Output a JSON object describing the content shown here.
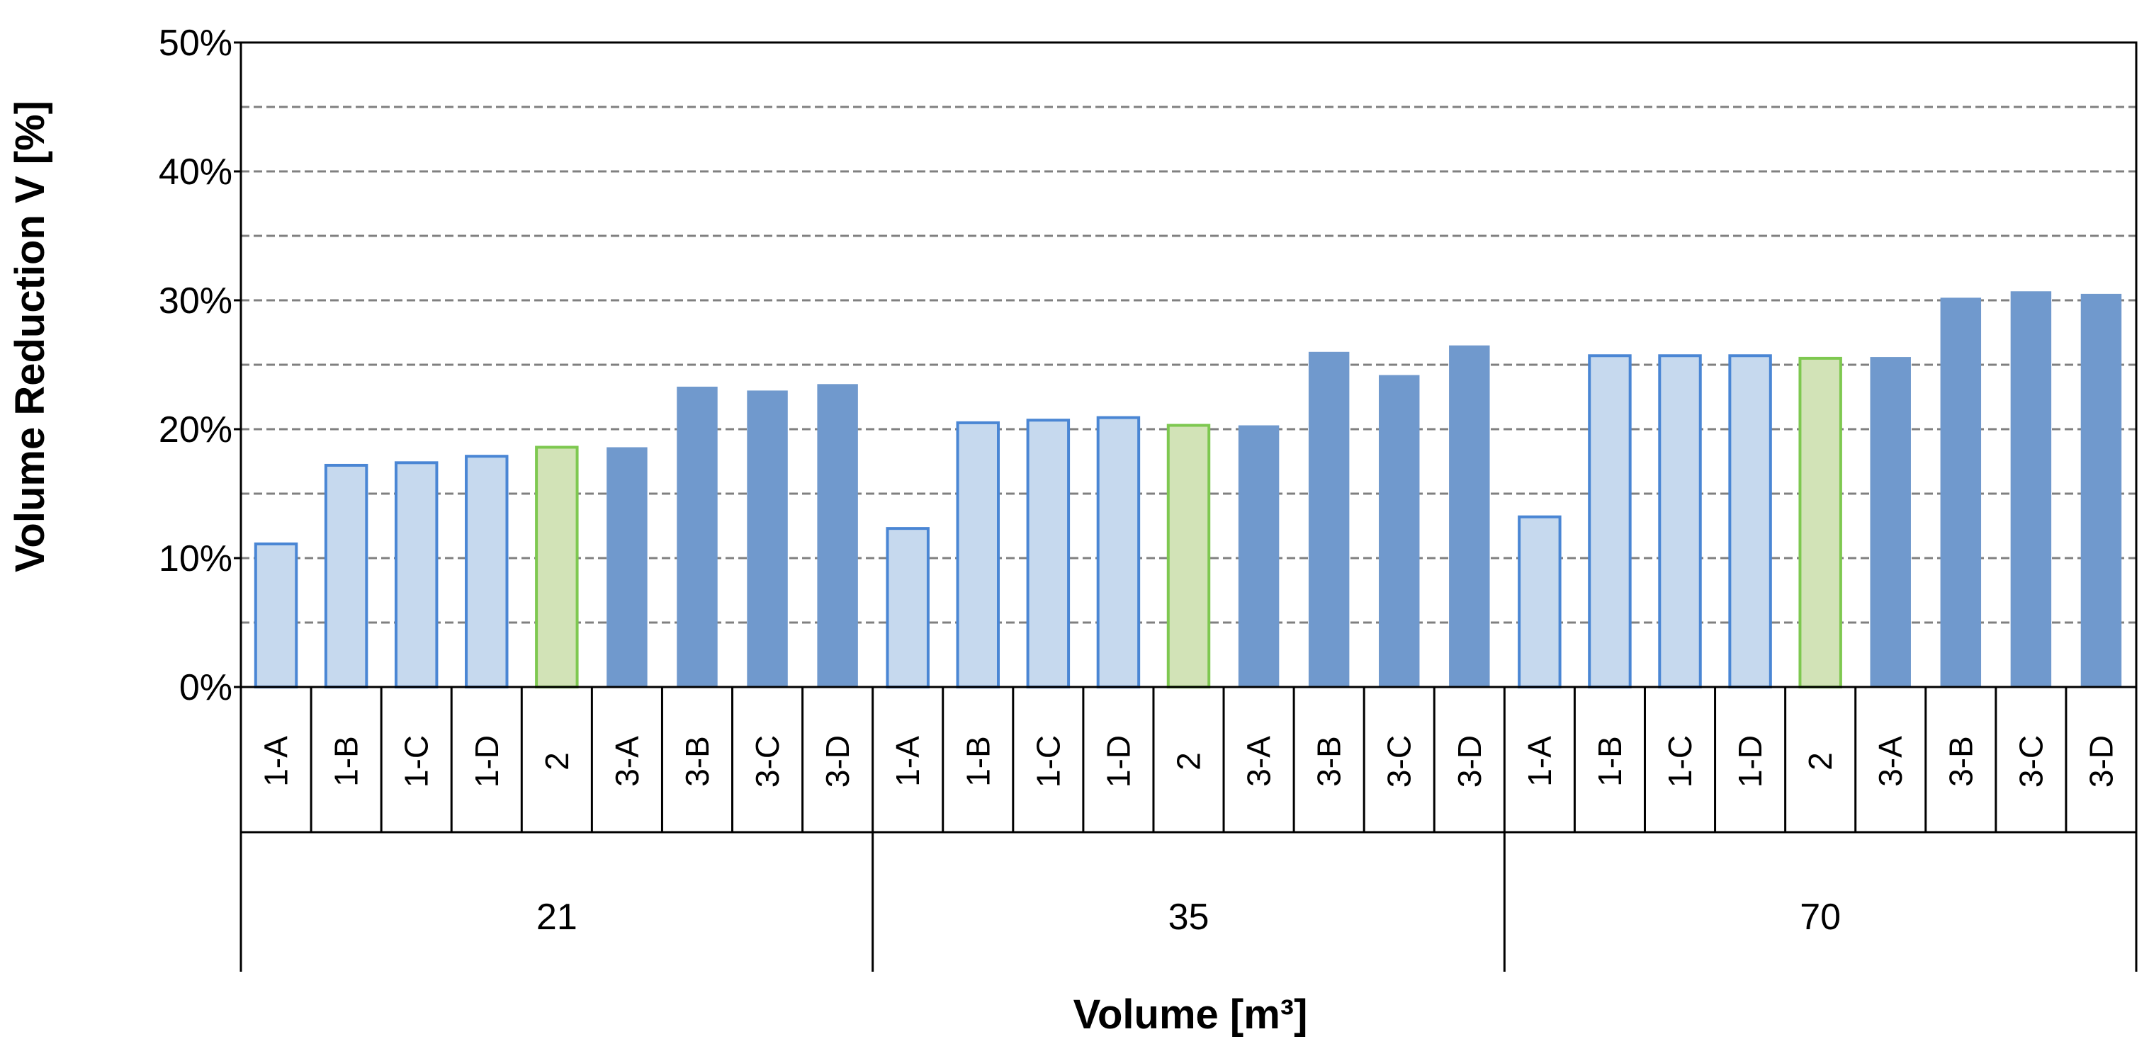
{
  "chart_data": {
    "type": "bar",
    "title": "",
    "xlabel": "Volume [m³]",
    "ylabel": "Volume Reduction V [%]",
    "ylim": [
      0,
      50
    ],
    "yticks": [
      "0%",
      "10%",
      "20%",
      "30%",
      "40%",
      "50%"
    ],
    "grid": "horizontal dashed",
    "groups": [
      {
        "label": "21",
        "categories": [
          "1-A",
          "1-B",
          "1-C",
          "1-D",
          "2",
          "3-A",
          "3-B",
          "3-C",
          "3-D"
        ],
        "values": [
          11.1,
          17.2,
          17.4,
          17.9,
          18.6,
          18.6,
          23.3,
          23.0,
          23.5
        ]
      },
      {
        "label": "35",
        "categories": [
          "1-A",
          "1-B",
          "1-C",
          "1-D",
          "2",
          "3-A",
          "3-B",
          "3-C",
          "3-D"
        ],
        "values": [
          12.3,
          20.5,
          20.7,
          20.9,
          20.3,
          20.3,
          26.0,
          24.2,
          26.5
        ]
      },
      {
        "label": "70",
        "categories": [
          "1-A",
          "1-B",
          "1-C",
          "1-D",
          "2",
          "3-A",
          "3-B",
          "3-C",
          "3-D"
        ],
        "values": [
          13.2,
          25.7,
          25.7,
          25.7,
          25.5,
          25.6,
          30.2,
          30.7,
          30.5
        ]
      }
    ],
    "colors": {
      "type1_fill": "#c6d9ee",
      "type1_stroke": "#4a86d4",
      "type2_fill": "#d2e3b7",
      "type2_stroke": "#7ec850",
      "type3_fill": "#7099cd",
      "grid": "#808080",
      "axis": "#000000"
    }
  }
}
